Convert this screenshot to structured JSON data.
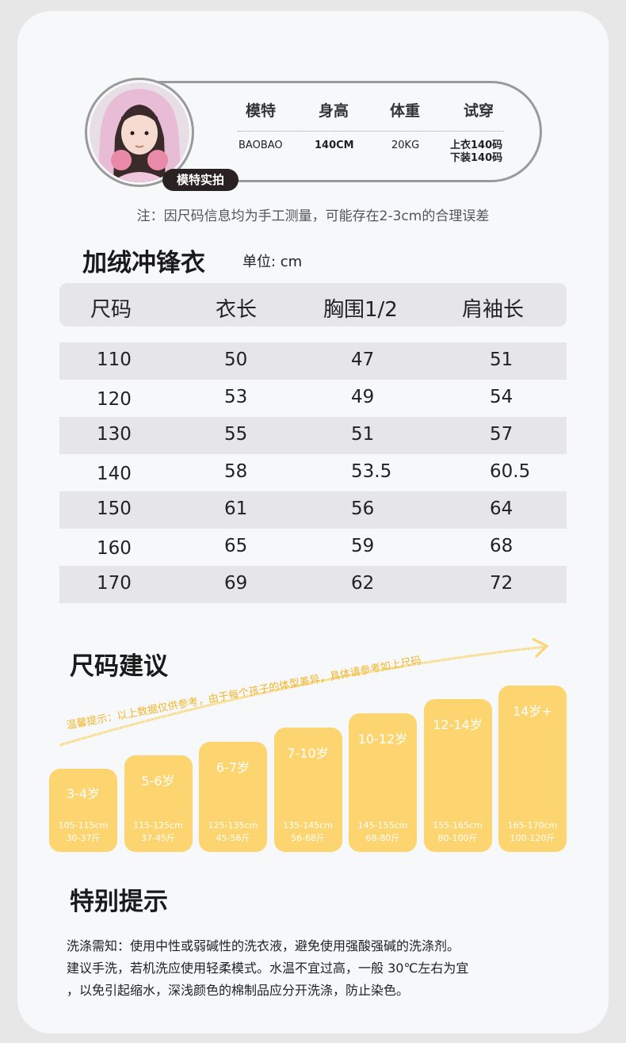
{
  "model": {
    "badge": "模特实拍",
    "headers": [
      "模特",
      "身高",
      "体重",
      "试穿"
    ],
    "name": "BAOBAO",
    "height": "140CM",
    "weight": "20KG",
    "try_top": "上衣140码",
    "try_bottom": "下装140码"
  },
  "note": "注：因尺码信息均为手工测量，可能存在2-3cm的合理误差",
  "product": {
    "title": "加绒冲锋衣",
    "unit": "单位: cm"
  },
  "table": {
    "columns": [
      "尺码",
      "衣长",
      "胸围1/2",
      "肩袖长"
    ],
    "rows": [
      [
        "110",
        "50",
        "47",
        "51"
      ],
      [
        "120",
        "53",
        "49",
        "54"
      ],
      [
        "130",
        "55",
        "51",
        "57"
      ],
      [
        "140",
        "58",
        "53.5",
        "60.5"
      ],
      [
        "150",
        "61",
        "56",
        "64"
      ],
      [
        "160",
        "65",
        "59",
        "68"
      ],
      [
        "170",
        "69",
        "62",
        "72"
      ]
    ]
  },
  "size_suggest": {
    "title": "尺码建议",
    "hint": "温馨提示：以上数据仅供参考，由于每个孩子的体型差异，具体请参考如上尺码",
    "groups": [
      {
        "age": "3-4岁",
        "height": "105-115cm",
        "weight": "30-37斤"
      },
      {
        "age": "5-6岁",
        "height": "115-125cm",
        "weight": "37-45斤"
      },
      {
        "age": "6-7岁",
        "height": "125-135cm",
        "weight": "45-56斤"
      },
      {
        "age": "7-10岁",
        "height": "135-145cm",
        "weight": "56-68斤"
      },
      {
        "age": "10-12岁",
        "height": "145-155cm",
        "weight": "68-80斤"
      },
      {
        "age": "12-14岁",
        "height": "155-165cm",
        "weight": "80-100斤"
      },
      {
        "age": "14岁+",
        "height": "165-170cm",
        "weight": "100-120斤"
      }
    ]
  },
  "tips": {
    "title": "特别提示",
    "lines": [
      "洗涤需知：使用中性或弱碱性的洗衣液，避免使用强酸强碱的洗涤剂。",
      "建议手洗，若机洗应使用轻柔模式。水温不宜过高，一般 30℃左右为宜",
      "，以免引起缩水，深浅颜色的棉制品应分开洗涤，防止染色。"
    ]
  },
  "colors": {
    "bar": "#fcd570",
    "shade": "#e6e6e8",
    "badge": "#2a2222"
  }
}
